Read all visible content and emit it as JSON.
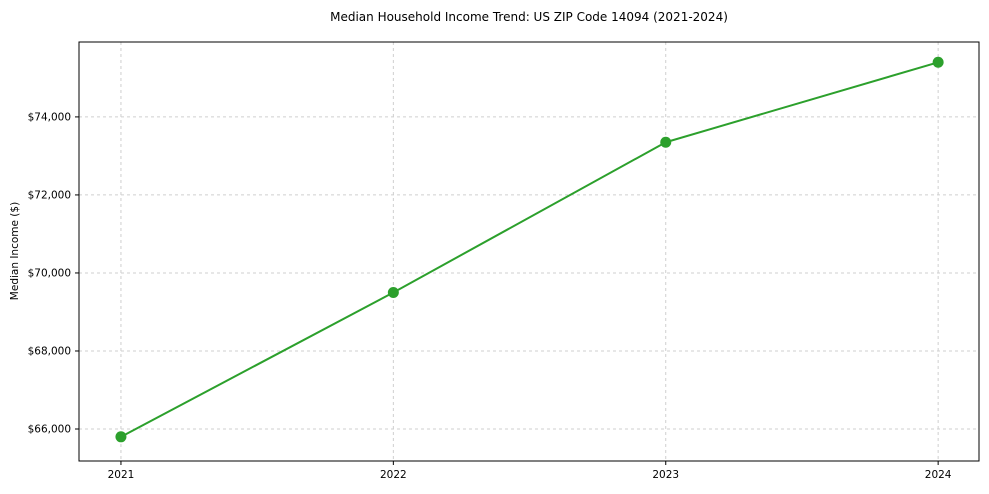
{
  "chart_data": {
    "type": "line",
    "title": "Median Household Income Trend: US ZIP Code 14094 (2021-2024)",
    "xlabel": "",
    "ylabel": "Median Income ($)",
    "x": [
      2021,
      2022,
      2023,
      2024
    ],
    "series": [
      {
        "name": "Median Household Income",
        "values": [
          65800,
          69500,
          73350,
          75400
        ],
        "color": "#2ca02c"
      }
    ],
    "xticks": [
      2021,
      2022,
      2023,
      2024
    ],
    "xtick_labels": [
      "2021",
      "2022",
      "2023",
      "2024"
    ],
    "yticks": [
      66000,
      68000,
      70000,
      72000,
      74000
    ],
    "ytick_labels": [
      "$66,000",
      "$68,000",
      "$70,000",
      "$72,000",
      "$74,000"
    ],
    "xlim": [
      2020.846,
      2024.15
    ],
    "ylim": [
      65180,
      75920
    ],
    "grid": true,
    "grid_style": "dashed",
    "grid_color": "#cfcfcf",
    "background": "#ffffff",
    "axis_color": "#000000",
    "legend": "none",
    "marker": "circle",
    "marker_size": 5.5,
    "line_width": 2
  }
}
